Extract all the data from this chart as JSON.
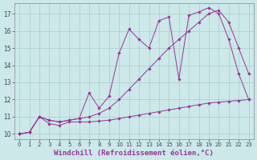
{
  "background_color": "#cce8e8",
  "grid_color": "#aacccc",
  "line_color": "#993399",
  "xlabel": "Windchill (Refroidissement éolien,°C)",
  "xlabel_fontsize": 6.5,
  "xlim": [
    -0.5,
    23.5
  ],
  "ylim": [
    9.7,
    17.6
  ],
  "xticks": [
    0,
    1,
    2,
    3,
    4,
    5,
    6,
    7,
    8,
    9,
    10,
    11,
    12,
    13,
    14,
    15,
    16,
    17,
    18,
    19,
    20,
    21,
    22,
    23
  ],
  "yticks": [
    10,
    11,
    12,
    13,
    14,
    15,
    16,
    17
  ],
  "series": [
    {
      "x": [
        0,
        1,
        2,
        3,
        4,
        5,
        6,
        7,
        8,
        9,
        10,
        11,
        12,
        13,
        14,
        15,
        16,
        17,
        18,
        19,
        20,
        21,
        22,
        23
      ],
      "y": [
        10.0,
        10.1,
        11.0,
        10.6,
        10.5,
        10.7,
        10.7,
        10.7,
        10.75,
        10.8,
        10.9,
        11.0,
        11.1,
        11.2,
        11.3,
        11.4,
        11.5,
        11.6,
        11.7,
        11.8,
        11.85,
        11.9,
        11.95,
        12.0
      ]
    },
    {
      "x": [
        0,
        1,
        2,
        3,
        4,
        5,
        6,
        7,
        8,
        9,
        10,
        11,
        12,
        13,
        14,
        15,
        16,
        17,
        18,
        19,
        20,
        21,
        22,
        23
      ],
      "y": [
        10.0,
        10.1,
        11.0,
        10.8,
        10.7,
        10.8,
        10.9,
        11.0,
        11.2,
        11.5,
        12.0,
        12.6,
        13.2,
        13.8,
        14.4,
        15.0,
        15.5,
        16.0,
        16.5,
        17.0,
        17.2,
        16.5,
        15.0,
        13.5
      ]
    },
    {
      "x": [
        0,
        1,
        2,
        3,
        4,
        5,
        6,
        7,
        8,
        9,
        10,
        11,
        12,
        13,
        14,
        15,
        16,
        17,
        18,
        19,
        20,
        21,
        22,
        23
      ],
      "y": [
        10.0,
        10.1,
        11.0,
        10.8,
        10.7,
        10.8,
        10.9,
        12.4,
        11.5,
        12.2,
        14.7,
        16.1,
        15.5,
        15.0,
        16.6,
        16.8,
        13.2,
        16.9,
        17.1,
        17.35,
        17.0,
        15.5,
        13.5,
        12.0
      ]
    }
  ]
}
